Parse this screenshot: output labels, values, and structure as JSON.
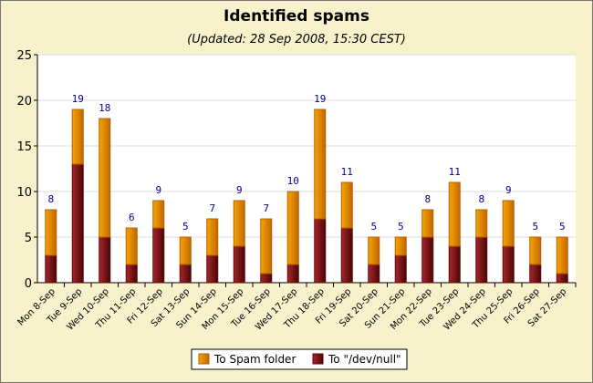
{
  "chart_data": {
    "type": "bar",
    "stacked": true,
    "title": "Identified spams",
    "subtitle": "(Updated: 28 Sep 2008, 15:30 CEST)",
    "categories": [
      "Mon 8-Sep",
      "Tue 9-Sep",
      "Wed 10-Sep",
      "Thu 11-Sep",
      "Fri 12-Sep",
      "Sat 13-Sep",
      "Sun 14-Sep",
      "Mon 15-Sep",
      "Tue 16-Sep",
      "Wed 17-Sep",
      "Thu 18-Sep",
      "Fri 19-Sep",
      "Sat 20-Sep",
      "Sun 21-Sep",
      "Mon 22-Sep",
      "Tue 23-Sep",
      "Wed 24-Sep",
      "Thu 25-Sep",
      "Fri 26-Sep",
      "Sat 27-Sep"
    ],
    "series": [
      {
        "name": "To \"/dev/null\"",
        "color": "#8b1a1a",
        "values": [
          3,
          13,
          5,
          2,
          6,
          2,
          3,
          4,
          1,
          2,
          7,
          6,
          2,
          3,
          5,
          4,
          5,
          4,
          2,
          1
        ]
      },
      {
        "name": "To Spam folder",
        "color": "#f0a000",
        "values": [
          5,
          6,
          13,
          4,
          3,
          3,
          4,
          5,
          6,
          8,
          12,
          5,
          3,
          2,
          3,
          7,
          3,
          5,
          3,
          4
        ]
      }
    ],
    "totals": [
      8,
      19,
      18,
      6,
      9,
      5,
      7,
      9,
      7,
      10,
      19,
      11,
      5,
      5,
      8,
      11,
      8,
      9,
      5,
      5
    ],
    "yticks": [
      0,
      5,
      10,
      15,
      20,
      25
    ],
    "ylim": [
      0,
      25
    ],
    "grid": true,
    "legend": {
      "placement": "bottom",
      "order": [
        "To Spam folder",
        "To \"/dev/null\""
      ]
    },
    "label_color": "#00008b"
  }
}
